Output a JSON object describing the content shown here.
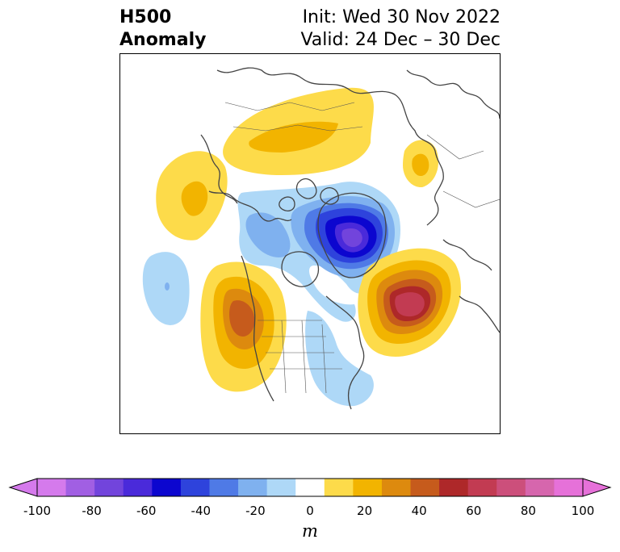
{
  "title": {
    "left_line1": "H500",
    "left_line2": "Anomaly",
    "init": "Init: Wed 30 Nov 2022",
    "valid": "Valid: 24 Dec – 30 Dec"
  },
  "colorbar": {
    "unit": "m",
    "range": [
      -100,
      100
    ],
    "extend": "both",
    "levels": [
      -100,
      -90,
      -80,
      -70,
      -60,
      -50,
      -40,
      -30,
      -20,
      -10,
      10,
      20,
      30,
      40,
      50,
      60,
      70,
      80,
      90,
      100
    ],
    "colors": [
      "#d57aec",
      "#a15fe3",
      "#7244dc",
      "#4a2ada",
      "#0c06cf",
      "#2e43dc",
      "#4f7ae6",
      "#7fb1ef",
      "#aed8f7",
      "#ffffff",
      "#fddb4a",
      "#f2b400",
      "#dd8a0e",
      "#c65b1c",
      "#ae2829",
      "#c23b52",
      "#cc4f7b",
      "#d666ad",
      "#e671d9"
    ],
    "extend_low_color": "#d57aec",
    "extend_high_color": "#e671d9",
    "tick_labels": [
      "-100",
      "-80",
      "-60",
      "-40",
      "-20",
      "0",
      "20",
      "40",
      "60",
      "80",
      "100"
    ]
  },
  "map": {
    "projection": "polar stereographic (North America / Arctic)",
    "anomaly_centers": [
      {
        "region": "Baffin Bay / Greenland west",
        "sign": "negative",
        "peak_m": -90
      },
      {
        "region": "Western North America / Pacific Northwest",
        "sign": "positive",
        "peak_m": 60
      },
      {
        "region": "North Atlantic south of Greenland",
        "sign": "positive",
        "peak_m": 70
      },
      {
        "region": "Northern Siberia",
        "sign": "positive",
        "peak_m": 30
      },
      {
        "region": "Bering Sea / Alaska west",
        "sign": "positive",
        "peak_m": 30
      },
      {
        "region": "East Asia / Mongolia",
        "sign": "positive",
        "peak_m": 20
      },
      {
        "region": "Eastern Pacific",
        "sign": "negative",
        "peak_m": -30
      },
      {
        "region": "Eastern US / Western Atlantic",
        "sign": "negative",
        "peak_m": -20
      }
    ]
  }
}
